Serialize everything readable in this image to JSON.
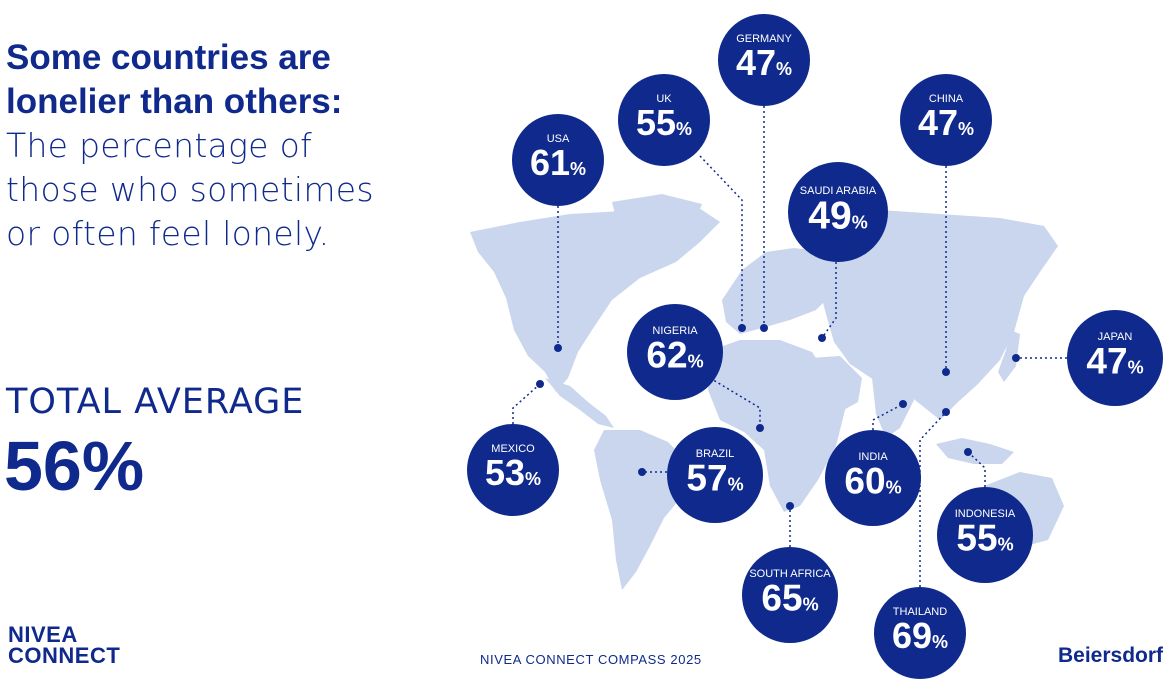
{
  "headline": {
    "line1": "Some countries are",
    "line2": "lonelier than others:",
    "line3": "The percentage of",
    "line4": "those who sometimes",
    "line5": "or often feel lonely."
  },
  "total": {
    "label": "TOTAL AVERAGE",
    "value": "56%"
  },
  "brand": {
    "line1": "NIVEA",
    "line2": "CONNECT"
  },
  "footer": "NIVEA CONNECT COMPASS 2025",
  "company": "Beiersdorf",
  "colors": {
    "brand_blue": "#0f2a8c",
    "land": "#c9d6ee",
    "background": "#ffffff"
  },
  "countries": [
    {
      "name": "USA",
      "value": 61
    },
    {
      "name": "UK",
      "value": 55
    },
    {
      "name": "GERMANY",
      "value": 47
    },
    {
      "name": "CHINA",
      "value": 47
    },
    {
      "name": "SAUDI ARABIA",
      "value": 49
    },
    {
      "name": "JAPAN",
      "value": 47
    },
    {
      "name": "NIGERIA",
      "value": 62
    },
    {
      "name": "MEXICO",
      "value": 53
    },
    {
      "name": "BRAZIL",
      "value": 57
    },
    {
      "name": "INDIA",
      "value": 60
    },
    {
      "name": "INDONESIA",
      "value": 55
    },
    {
      "name": "SOUTH AFRICA",
      "value": 65
    },
    {
      "name": "THAILAND",
      "value": 69
    }
  ]
}
